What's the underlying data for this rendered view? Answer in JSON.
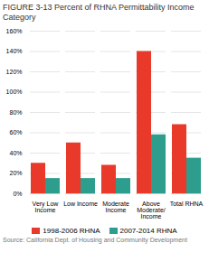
{
  "chart_data": {
    "type": "bar",
    "title": "FIGURE 3-13  Percent of RHNA Permittability Income Category",
    "annotations": [
      "Source: California Dept. of Housing and Community Development"
    ],
    "categories": [
      "Very Low\nIncome",
      "Low Income",
      "Moderate\nIncome",
      "Above\nModerate/\nIncome",
      "Total RHNA"
    ],
    "series": [
      {
        "name": "1998-2006 RHNA",
        "color": "#e8392a",
        "values": [
          30,
          50,
          28,
          140,
          68
        ]
      },
      {
        "name": "2007-2014 RHNA",
        "color": "#2d9e8e",
        "values": [
          15,
          15,
          15,
          58,
          35
        ]
      }
    ],
    "ylim": [
      0,
      160
    ],
    "yticks": [
      {
        "value": 0,
        "label": "0%"
      },
      {
        "value": 20,
        "label": "20%"
      },
      {
        "value": 40,
        "label": "40%"
      },
      {
        "value": 60,
        "label": "60%"
      },
      {
        "value": 80,
        "label": "80%"
      },
      {
        "value": 100,
        "label": "100%"
      },
      {
        "value": 120,
        "label": "120%"
      },
      {
        "value": 140,
        "label": "140%"
      },
      {
        "value": 160,
        "label": "160%"
      }
    ],
    "grid": true,
    "legend": "bottom"
  }
}
